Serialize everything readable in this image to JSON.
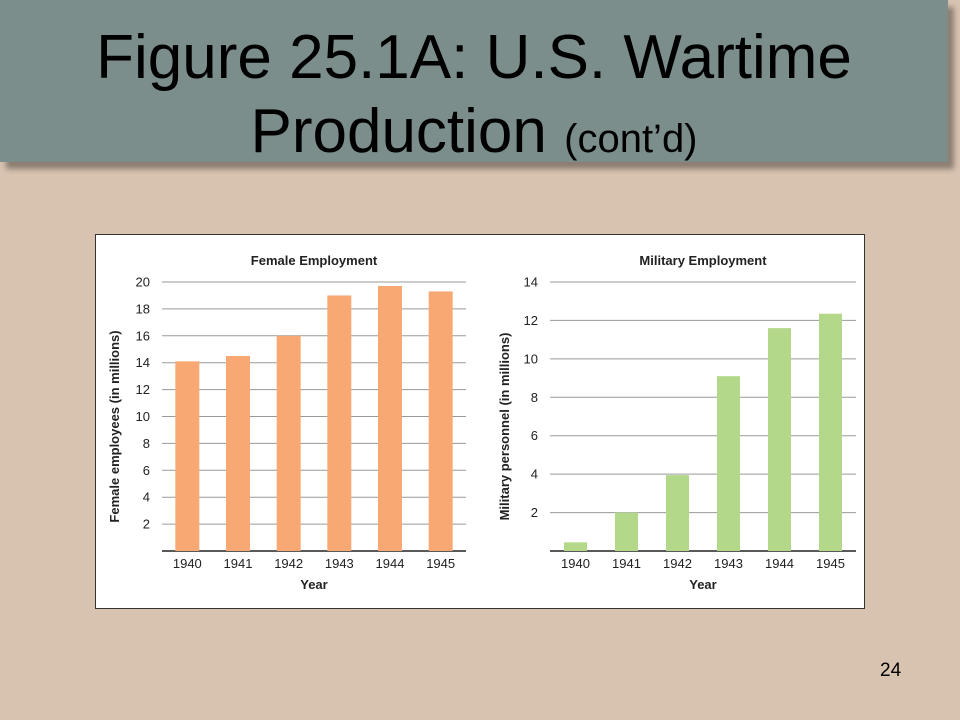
{
  "slide": {
    "title_line1": "Figure 25.1A: U.S. Wartime",
    "title_line2_main": "Production ",
    "title_line2_suffix": "(cont’d)",
    "page_number": "24"
  },
  "chart_data": [
    {
      "type": "bar",
      "title": "Female Employment",
      "xlabel": "Year",
      "ylabel": "Female employees (in millions)",
      "categories": [
        "1940",
        "1941",
        "1942",
        "1943",
        "1944",
        "1945"
      ],
      "values": [
        14.1,
        14.5,
        16.0,
        19.0,
        19.7,
        19.3
      ],
      "ylim": [
        0,
        20
      ],
      "yticks": [
        2,
        4,
        6,
        8,
        10,
        12,
        14,
        16,
        18,
        20
      ],
      "bar_color": "#f7a873",
      "grid": true
    },
    {
      "type": "bar",
      "title": "Military Employment",
      "xlabel": "Year",
      "ylabel": "Military personnel (in millions)",
      "categories": [
        "1940",
        "1941",
        "1942",
        "1943",
        "1944",
        "1945"
      ],
      "values": [
        0.45,
        2.0,
        3.95,
        9.1,
        11.6,
        12.35
      ],
      "ylim": [
        0,
        14
      ],
      "yticks": [
        2,
        4,
        6,
        8,
        10,
        12,
        14
      ],
      "bar_color": "#b3d88a",
      "grid": true
    }
  ]
}
